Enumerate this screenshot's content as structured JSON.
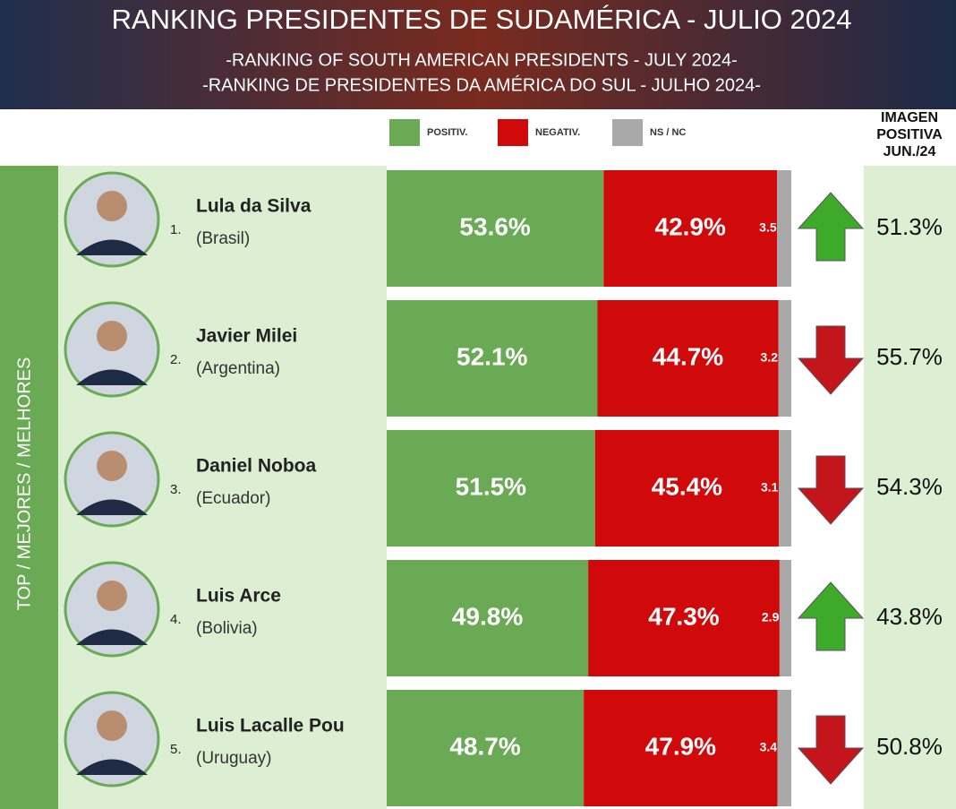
{
  "chart_data": {
    "type": "stacked-bar",
    "title": "RANKING PRESIDENTES DE SUDAMÉRICA - JULIO 2024",
    "subtitles": [
      "-RANKING OF SOUTH AMERICAN PRESIDENTS - JULY 2024-",
      "-RANKING DE PRESIDENTES DA AMÉRICA DO SUL - JULHO 2024-"
    ],
    "side_label": "TOP / MEJORES / MELHORES",
    "ranks": [
      "1.",
      "2.",
      "3.",
      "4.",
      "5."
    ],
    "categories": [
      "Lula da Silva",
      "Javier Milei",
      "Daniel Noboa",
      "Luis Arce",
      "Luis Lacalle Pou"
    ],
    "countries": [
      "(Brasil)",
      "(Argentina)",
      "(Ecuador)",
      "(Bolivia)",
      "(Uruguay)"
    ],
    "xlim": [
      0,
      100
    ],
    "series": [
      {
        "name": "POSITIV.",
        "color": "#6aaa55",
        "values": [
          53.6,
          52.1,
          51.5,
          49.8,
          48.7
        ],
        "value_labels": [
          "53.6%",
          "52.1%",
          "51.5%",
          "49.8%",
          "48.7%"
        ]
      },
      {
        "name": "NEGATIV.",
        "color": "#d00a0a",
        "values": [
          42.9,
          44.7,
          45.4,
          47.3,
          47.9
        ],
        "value_labels": [
          "42.9%",
          "44.7%",
          "45.4%",
          "47.3%",
          "47.9%"
        ]
      },
      {
        "name": "NS / NC",
        "color": "#a9a9a9",
        "values": [
          3.5,
          3.2,
          3.1,
          2.9,
          3.4
        ]
      }
    ],
    "previous_label": [
      "IMAGEN",
      "POSITIVA",
      "JUN./24"
    ],
    "previous": [
      51.3,
      55.7,
      54.3,
      43.8,
      50.8
    ],
    "previous_labels": [
      "51.3%",
      "55.7%",
      "54.3%",
      "43.8%",
      "50.8%"
    ],
    "up_color": "#3daa2a",
    "down_color": "#c4151c"
  }
}
